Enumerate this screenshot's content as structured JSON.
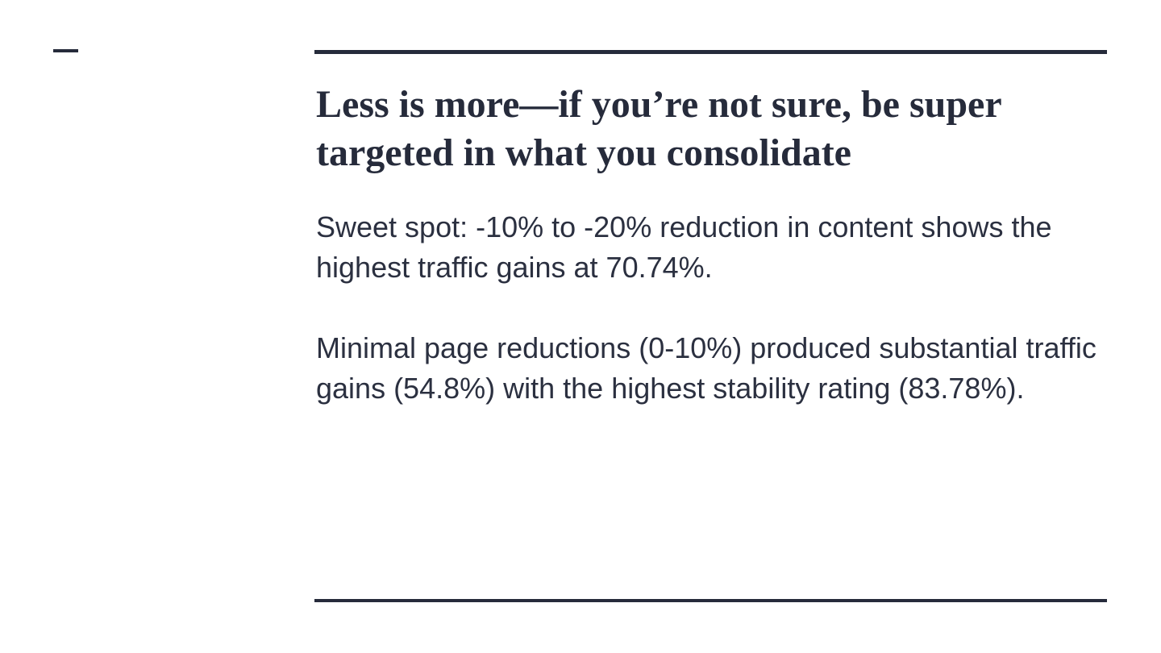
{
  "slide": {
    "title": "Less is more—if you’re not sure, be super targeted in what you consolidate",
    "paragraphs": [
      "Sweet spot: -10% to -20% reduction in content shows the highest traffic gains at 70.74%.",
      "Minimal page reductions (0-10%) produced substantial traffic gains (54.8%) with the highest stability rating (83.78%)."
    ],
    "key_figures": {
      "sweet_spot_reduction_range": "-10% to -20%",
      "sweet_spot_traffic_gain": "70.74%",
      "minimal_reduction_range": "0-10%",
      "minimal_traffic_gain": "54.8%",
      "highest_stability_rating": "83.78%"
    },
    "colors": {
      "accent_line": "#262B3B",
      "title_text": "#262B3B",
      "body_text": "#2B3040",
      "background": "#FFFFFF"
    }
  }
}
